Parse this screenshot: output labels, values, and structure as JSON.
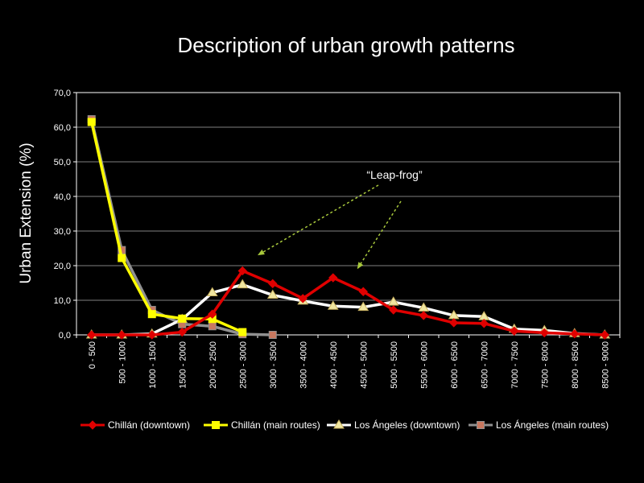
{
  "chart_data": {
    "type": "line",
    "title": "Description of urban growth patterns",
    "xlabel": "",
    "ylabel": "Urban Extension (%)",
    "ylim": [
      0,
      70
    ],
    "yticks": [
      0,
      10,
      20,
      30,
      40,
      50,
      60,
      70
    ],
    "ytick_labels": [
      "0,0",
      "10,0",
      "20,0",
      "30,0",
      "40,0",
      "50,0",
      "60,0",
      "70,0"
    ],
    "grid": true,
    "legend_position": "bottom",
    "categories": [
      "0 - 500",
      "500 - 1000",
      "1000 - 1500",
      "1500 - 2000",
      "2000 - 2500",
      "2500 - 3000",
      "3000 - 3500",
      "3500 - 4000",
      "4000 - 4500",
      "4500 - 5000",
      "5000 - 5500",
      "5500 - 6000",
      "6000 - 6500",
      "6500 - 7000",
      "7000 - 7500",
      "7500 - 8000",
      "8000 - 8500",
      "8500 - 9000"
    ],
    "series": [
      {
        "name": "Chillán (downtown)",
        "color": "#e00000",
        "marker": "diamond",
        "values": [
          0,
          0,
          0,
          0.8,
          6,
          18.5,
          14.8,
          10.5,
          16.5,
          12.5,
          7.2,
          5.6,
          3.5,
          3.3,
          1.1,
          0.6,
          0.3,
          0
        ]
      },
      {
        "name": "Chillán (main routes)",
        "color": "#ffff00",
        "marker": "square",
        "values": [
          61.5,
          22.2,
          6,
          4.7,
          4.6,
          0.8,
          null,
          null,
          null,
          null,
          null,
          null,
          null,
          null,
          null,
          null,
          null,
          null
        ]
      },
      {
        "name": "Los Ángeles (downtown)",
        "color": "#ffffff",
        "marker": "triangle",
        "marker_fill": "#f0e6a0",
        "values": [
          0,
          0,
          0.3,
          4.5,
          12.2,
          14.5,
          11.5,
          9.8,
          8.3,
          8,
          9.5,
          7.8,
          5.6,
          5.3,
          1.7,
          1.3,
          0.4,
          0
        ]
      },
      {
        "name": "Los Ángeles (main routes)",
        "color": "#909090",
        "marker": "square",
        "marker_fill": "#c87860",
        "values": [
          62.3,
          24.5,
          7.2,
          3.1,
          2.5,
          0.2,
          0,
          null,
          null,
          null,
          null,
          null,
          null,
          null,
          null,
          null,
          null,
          null
        ]
      }
    ],
    "annotations": [
      {
        "text": "“Leap-frog”",
        "arrows_to": [
          {
            "category_index": 5.5,
            "value": 23
          },
          {
            "category_index": 8.8,
            "value": 19
          }
        ]
      }
    ]
  }
}
